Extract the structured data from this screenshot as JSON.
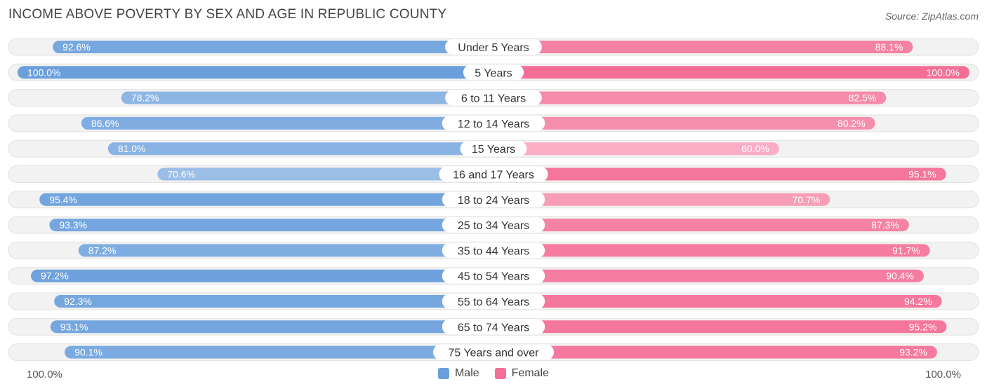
{
  "header": {
    "title": "INCOME ABOVE POVERTY BY SEX AND AGE IN REPUBLIC COUNTY",
    "source": "Source: ZipAtlas.com"
  },
  "axis": {
    "left_label": "100.0%",
    "right_label": "100.0%"
  },
  "legend": {
    "male_label": "Male",
    "female_label": "Female",
    "male_color": "#6a9fdc",
    "female_color": "#f46e96"
  },
  "chart_data": {
    "type": "bar",
    "orientation": "horizontal-diverging",
    "title": "INCOME ABOVE POVERTY BY SEX AND AGE IN REPUBLIC COUNTY",
    "xlim": [
      0,
      100
    ],
    "unit": "%",
    "categories": [
      "Under 5 Years",
      "5 Years",
      "6 to 11 Years",
      "12 to 14 Years",
      "15 Years",
      "16 and 17 Years",
      "18 to 24 Years",
      "25 to 34 Years",
      "35 to 44 Years",
      "45 to 54 Years",
      "55 to 64 Years",
      "65 to 74 Years",
      "75 Years and over"
    ],
    "series": [
      {
        "name": "Male",
        "values": [
          92.6,
          100.0,
          78.2,
          86.6,
          81.0,
          70.6,
          95.4,
          93.3,
          87.2,
          97.2,
          92.3,
          93.1,
          90.1
        ]
      },
      {
        "name": "Female",
        "values": [
          88.1,
          100.0,
          82.5,
          80.2,
          60.0,
          95.1,
          70.7,
          87.3,
          91.7,
          90.4,
          94.2,
          95.2,
          93.2
        ]
      }
    ],
    "legend_position": "bottom-center"
  }
}
